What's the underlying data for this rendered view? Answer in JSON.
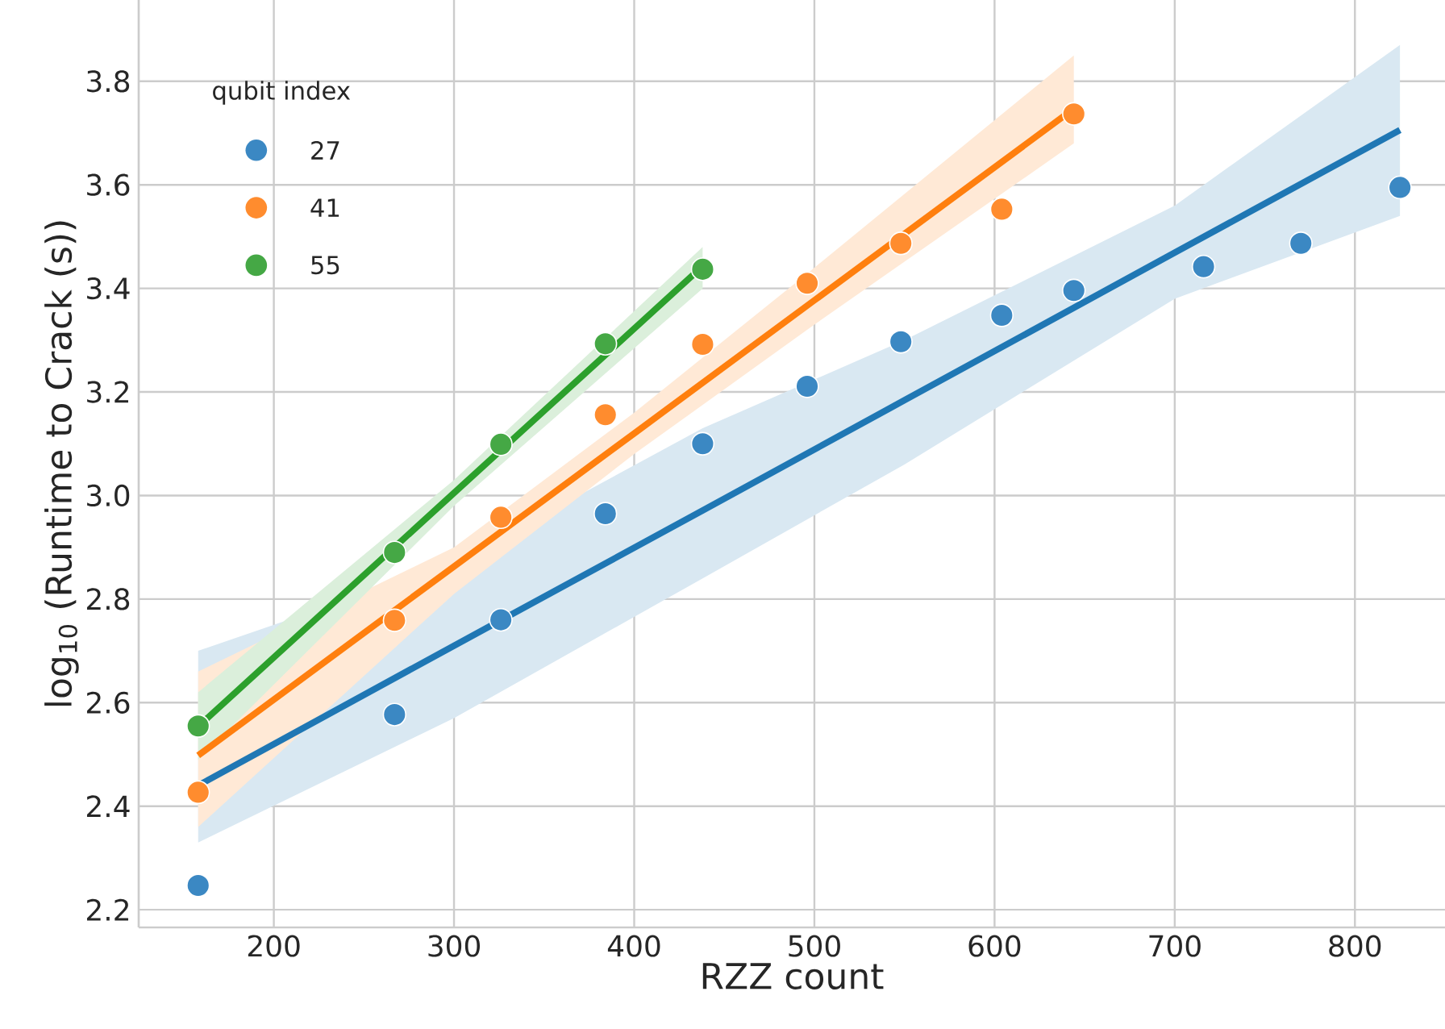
{
  "chart_data": {
    "type": "scatter",
    "xlabel": "RZZ count",
    "ylabel": "log$_{10}$ (Runtime to Crack (s))",
    "legend_title": "qubit index",
    "xlim": [
      125,
      850
    ],
    "ylim": [
      2.166,
      3.957
    ],
    "xticks": [
      200,
      300,
      400,
      500,
      600,
      700,
      800
    ],
    "yticks": [
      2.2,
      2.4,
      2.6,
      2.8,
      {
        "value": 3,
        "label": "3.0"
      },
      3.2,
      3.4,
      3.6,
      3.8
    ],
    "grid": true,
    "legend": "top left",
    "marker": "circle",
    "series": [
      {
        "type": "line",
        "marker": "none",
        "color": "#1f77b4",
        "x": [
          158,
          300,
          438,
          550,
          700,
          825
        ],
        "values": [
          2.44,
          2.71,
          2.971,
          3.184,
          3.469,
          3.706
        ],
        "upper": [
          2.7,
          2.87,
          3.13,
          3.3,
          3.56,
          3.87
        ],
        "lower": [
          2.33,
          2.57,
          2.84,
          3.06,
          3.38,
          3.54
        ]
      },
      {
        "type": "line",
        "marker": "none",
        "color": "#ff7f0e",
        "x": [
          158,
          300,
          400,
          500,
          644
        ],
        "values": [
          2.498,
          2.863,
          3.12,
          3.377,
          3.747
        ],
        "upper": [
          2.66,
          2.9,
          3.16,
          3.44,
          3.85
        ],
        "lower": [
          2.36,
          2.81,
          3.08,
          3.33,
          3.68
        ]
      },
      {
        "type": "line",
        "marker": "none",
        "color": "#2ca02c",
        "x": [
          158,
          300,
          438
        ],
        "values": [
          2.554,
          3.005,
          3.443
        ],
        "upper": [
          2.62,
          3.03,
          3.48
        ],
        "lower": [
          2.49,
          2.98,
          3.4
        ]
      },
      {
        "name": "27",
        "color": "#3b88c3",
        "x": [
          158,
          267,
          326,
          384,
          438,
          496,
          548,
          604,
          644,
          716,
          770,
          825
        ],
        "values": [
          2.247,
          2.577,
          2.76,
          2.965,
          3.1,
          3.211,
          3.297,
          3.348,
          3.396,
          3.442,
          3.487,
          3.595
        ]
      },
      {
        "name": "41",
        "color": "#ff8c2e",
        "x": [
          158,
          267,
          326,
          384,
          438,
          496,
          548,
          604,
          644
        ],
        "values": [
          2.427,
          2.759,
          2.958,
          3.156,
          3.292,
          3.41,
          3.487,
          3.553,
          3.737
        ]
      },
      {
        "name": "55",
        "color": "#45a845",
        "x": [
          158,
          267,
          326,
          384,
          438
        ],
        "values": [
          2.555,
          2.89,
          3.099,
          3.293,
          3.437
        ]
      }
    ]
  }
}
